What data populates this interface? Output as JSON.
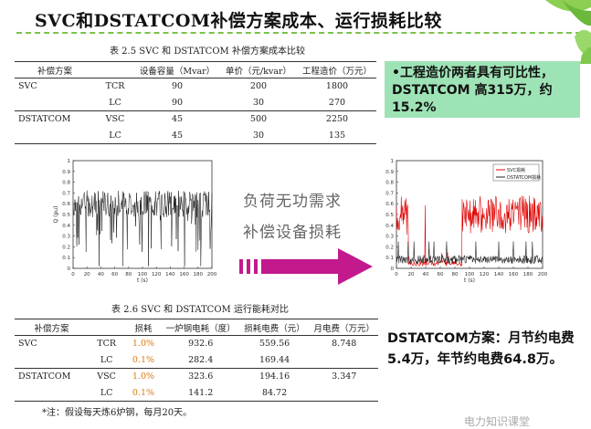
{
  "slide": {
    "title": "SVC和DSTATCOM补偿方案成本、运行损耗比较",
    "callout_cost": "•工程造价两者具有可比性，DSTATCOM 高315万，约15.2%",
    "callout_energy": "DSTATCOM方案：月节约电费5.4万，年节约电费64.8万。",
    "middle_line1": "负荷无功需求",
    "middle_line2": "补偿设备损耗",
    "watermark": "电力知识课堂",
    "footnote": "*注：假设每天炼6炉钢，每月20天。"
  },
  "table1": {
    "caption": "表 2.5   SVC 和 DSTATCOM 补偿方案成本比较",
    "headers": [
      "补偿方案",
      "",
      "设备容量（Mvar）",
      "单价（元/kvar）",
      "工程造价（万元）"
    ],
    "rows": [
      [
        "SVC",
        "TCR",
        "90",
        "200",
        "1800"
      ],
      [
        "",
        "LC",
        "90",
        "30",
        "270"
      ],
      [
        "DSTATCOM",
        "VSC",
        "45",
        "500",
        "2250"
      ],
      [
        "",
        "LC",
        "45",
        "30",
        "135"
      ]
    ]
  },
  "table2": {
    "caption": "表 2.6   SVC 和 DSTATCOM 运行能耗对比",
    "headers": [
      "补偿方案",
      "",
      "损耗",
      "一炉钢电耗（度）",
      "损耗电费（元）",
      "月电费（万元）"
    ],
    "rows": [
      [
        "SVC",
        "TCR",
        "1.0%",
        "932.6",
        "559.56",
        "8.748"
      ],
      [
        "",
        "LC",
        "0.1%",
        "282.4",
        "169.44",
        ""
      ],
      [
        "DSTATCOM",
        "VSC",
        "1.0%",
        "323.6",
        "194.16",
        "3.347"
      ],
      [
        "",
        "LC",
        "0.1%",
        "141.2",
        "84.72",
        ""
      ]
    ]
  },
  "chart_left": {
    "xlabel": "t (s)",
    "ylabel": "Q (pu)",
    "xticks": [
      "0",
      "20",
      "40",
      "60",
      "80",
      "100",
      "120",
      "140",
      "160",
      "180",
      "200"
    ],
    "yticks": [
      "1",
      "0.9",
      "0.8",
      "0.7",
      "0.6",
      "0.5",
      "0.4",
      "0.3",
      "0.2",
      "0.1",
      "0"
    ]
  },
  "chart_right": {
    "xlabel": "t (s)",
    "legend": [
      "SVC损耗",
      "DSTATCOM损耗"
    ],
    "colors": {
      "svc": "#e00000",
      "dstatcom": "#222222"
    },
    "xticks": [
      "0",
      "20",
      "40",
      "60",
      "80",
      "100",
      "120",
      "140",
      "160",
      "180",
      "200"
    ],
    "yticks": [
      "1",
      "0.9",
      "0.8",
      "0.7",
      "0.6",
      "0.5",
      "0.4",
      "0.3",
      "0.2",
      "0.1",
      "0"
    ]
  }
}
